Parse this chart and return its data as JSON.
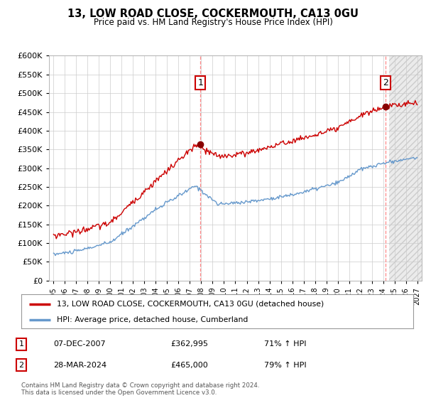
{
  "title": "13, LOW ROAD CLOSE, COCKERMOUTH, CA13 0GU",
  "subtitle": "Price paid vs. HM Land Registry's House Price Index (HPI)",
  "legend_line1": "13, LOW ROAD CLOSE, COCKERMOUTH, CA13 0GU (detached house)",
  "legend_line2": "HPI: Average price, detached house, Cumberland",
  "footnote": "Contains HM Land Registry data © Crown copyright and database right 2024.\nThis data is licensed under the Open Government Licence v3.0.",
  "point1_date": "07-DEC-2007",
  "point1_price": "£362,995",
  "point1_hpi": "71% ↑ HPI",
  "point2_date": "28-MAR-2024",
  "point2_price": "£465,000",
  "point2_hpi": "79% ↑ HPI",
  "sale1_year": 2007.92,
  "sale1_price": 362995,
  "sale2_year": 2024.24,
  "sale2_price": 465000,
  "ylim": [
    0,
    600000
  ],
  "xlim_start": 1994.6,
  "xlim_end": 2027.4,
  "red_color": "#cc0000",
  "blue_color": "#6699cc",
  "bg_color": "#ffffff",
  "grid_color": "#cccccc",
  "future_start": 2024.5
}
